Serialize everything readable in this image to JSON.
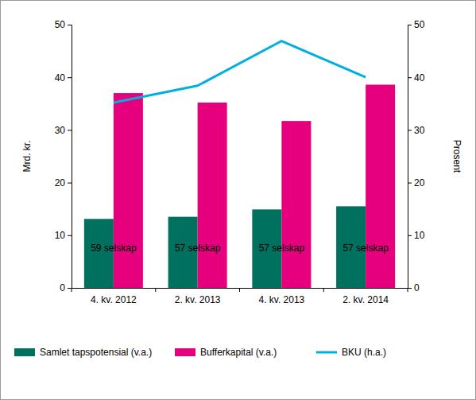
{
  "chart_data": {
    "type": "bar",
    "y_label": "Mrd. kr.",
    "y2_label": "Prosent",
    "categories": [
      "4. kv. 2012",
      "2. kv. 2013",
      "4. kv. 2013",
      "2. kv. 2014"
    ],
    "series": [
      {
        "name": "Samlet tapspotensial (v.a.)",
        "type": "bar",
        "color": "#00705f",
        "values": [
          13.1,
          13.5,
          14.9,
          15.5
        ]
      },
      {
        "name": "Bufferkapital (v.a.)",
        "type": "bar",
        "color": "#e6007e",
        "values": [
          37.0,
          35.2,
          31.7,
          38.6
        ]
      },
      {
        "name": "BKU (h.a.)",
        "type": "line",
        "axis": "y2",
        "color": "#00aee0",
        "values": [
          35.2,
          38.4,
          46.9,
          40.0
        ]
      }
    ],
    "annotations": [
      "59 selskap",
      "57 selskap",
      "57 selskap",
      "57 selskap"
    ],
    "ylim": [
      0,
      50
    ],
    "yticks": [
      0,
      10,
      20,
      30,
      40,
      50
    ],
    "y2lim": [
      0,
      50
    ],
    "y2ticks": [
      0,
      10,
      20,
      30,
      40,
      50
    ],
    "legend": "bottom",
    "grid": false
  }
}
